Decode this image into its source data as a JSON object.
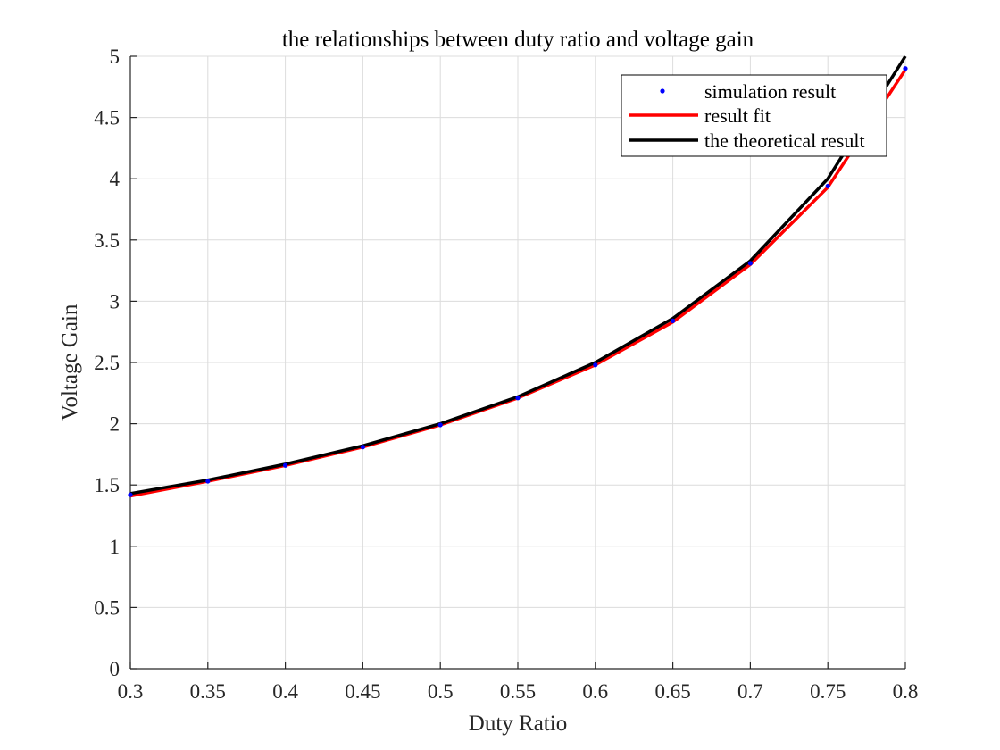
{
  "chart_data": {
    "type": "line",
    "title": "the relationships between duty ratio and voltage gain",
    "xlabel": "Duty Ratio",
    "ylabel": "Voltage Gain",
    "xlim": [
      0.3,
      0.8
    ],
    "ylim": [
      0,
      5
    ],
    "xticks": [
      0.3,
      0.35,
      0.4,
      0.45,
      0.5,
      0.55,
      0.6,
      0.65,
      0.7,
      0.75,
      0.8
    ],
    "xtick_labels": [
      "0.3",
      "0.35",
      "0.4",
      "0.45",
      "0.5",
      "0.55",
      "0.6",
      "0.65",
      "0.7",
      "0.75",
      "0.8"
    ],
    "yticks": [
      0,
      0.5,
      1,
      1.5,
      2,
      2.5,
      3,
      3.5,
      4,
      4.5,
      5
    ],
    "ytick_labels": [
      "0",
      "0.5",
      "1",
      "1.5",
      "2",
      "2.5",
      "3",
      "3.5",
      "4",
      "4.5",
      "5"
    ],
    "grid": true,
    "legend_position": "top-right",
    "x": [
      0.3,
      0.35,
      0.4,
      0.45,
      0.5,
      0.55,
      0.6,
      0.65,
      0.7,
      0.75,
      0.8
    ],
    "series": [
      {
        "name": "simulation result",
        "style": "markers",
        "color": "#0000ff",
        "values": [
          1.42,
          1.53,
          1.66,
          1.81,
          1.99,
          2.21,
          2.48,
          2.84,
          3.31,
          3.94,
          4.9
        ]
      },
      {
        "name": "result fit",
        "style": "line",
        "color": "#ff0000",
        "values": [
          1.41,
          1.53,
          1.66,
          1.81,
          1.99,
          2.21,
          2.48,
          2.83,
          3.3,
          3.93,
          4.89
        ]
      },
      {
        "name": "the theoretical result",
        "style": "line",
        "color": "#000000",
        "values": [
          1.43,
          1.54,
          1.67,
          1.82,
          2.0,
          2.22,
          2.5,
          2.86,
          3.33,
          4.0,
          5.0
        ]
      }
    ]
  }
}
